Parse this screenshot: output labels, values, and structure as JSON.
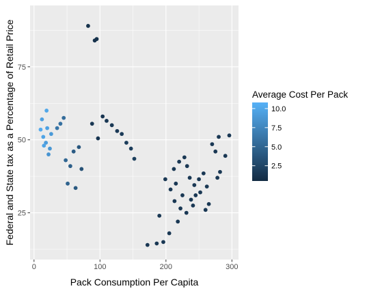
{
  "chart_data": {
    "type": "scatter",
    "title": "",
    "xlabel": "Pack Consumption Per Capita",
    "ylabel": "Federal and State tax as a Percentage of Retail Price",
    "xlim": [
      -6,
      310
    ],
    "ylim": [
      9,
      96
    ],
    "x_ticks": [
      0,
      100,
      200,
      300
    ],
    "x_tick_labels": [
      "0",
      "100",
      "200",
      "300"
    ],
    "y_ticks": [
      25,
      50,
      75
    ],
    "y_tick_labels": [
      "25",
      "50",
      "75"
    ],
    "grid": true,
    "panel_background": "#EBEBEB",
    "grid_color": "#FFFFFF",
    "legend": {
      "title": "Average Cost Per Pack",
      "position": "right",
      "type": "colorbar",
      "range": [
        0.5,
        10.8
      ],
      "breaks": [
        2.5,
        5.0,
        7.5,
        10.0
      ],
      "break_labels": [
        "2.5",
        "5.0",
        "7.5",
        "10.0"
      ],
      "low_color": "#132B43",
      "high_color": "#56B1F7"
    },
    "points": [
      [
        82,
        89,
        1.0
      ],
      [
        92,
        84,
        1.0
      ],
      [
        95,
        84.5,
        1.0
      ],
      [
        296,
        51.5,
        1.5
      ],
      [
        280,
        51,
        1.5
      ],
      [
        275,
        46,
        1.5
      ],
      [
        290,
        44.5,
        1.5
      ],
      [
        270,
        48.5,
        1.5
      ],
      [
        282,
        39,
        1.5
      ],
      [
        278,
        37,
        1.5
      ],
      [
        262,
        34,
        1.5
      ],
      [
        250,
        36.5,
        1.5
      ],
      [
        252,
        32,
        1.5
      ],
      [
        265,
        28,
        1.5
      ],
      [
        260,
        26,
        1.5
      ],
      [
        245,
        31,
        1.5
      ],
      [
        238,
        29.5,
        1.5
      ],
      [
        232,
        41,
        1.5
      ],
      [
        228,
        44,
        1.5
      ],
      [
        220,
        42.5,
        1.5
      ],
      [
        212,
        40,
        1.5
      ],
      [
        207,
        33,
        1.5
      ],
      [
        213,
        29,
        1.5
      ],
      [
        222,
        26.5,
        1.5
      ],
      [
        218,
        22,
        1.5
      ],
      [
        205,
        18,
        1.5
      ],
      [
        196,
        15,
        1.5
      ],
      [
        186,
        14.5,
        1.5
      ],
      [
        172,
        14,
        1.5
      ],
      [
        190,
        24,
        1.5
      ],
      [
        236,
        37,
        1.5
      ],
      [
        243,
        34.5,
        1.5
      ],
      [
        257,
        38.5,
        1.5
      ],
      [
        225,
        31,
        1.5
      ],
      [
        231,
        25,
        1.5
      ],
      [
        215,
        35,
        1.5
      ],
      [
        199,
        36.5,
        1.5
      ],
      [
        241,
        27.5,
        1.5
      ],
      [
        19,
        60,
        10.0
      ],
      [
        12,
        57,
        9.5
      ],
      [
        14,
        51,
        9.8
      ],
      [
        18,
        49,
        9.2
      ],
      [
        24,
        47,
        8.8
      ],
      [
        10,
        53.5,
        10.3
      ],
      [
        20,
        54,
        9.6
      ],
      [
        26,
        52,
        9.0
      ],
      [
        15,
        48,
        9.8
      ],
      [
        22,
        45,
        8.6
      ],
      [
        45,
        57.5,
        5.5
      ],
      [
        40,
        55.5,
        5.8
      ],
      [
        35,
        54,
        6.2
      ],
      [
        48,
        43,
        5.0
      ],
      [
        55,
        41,
        4.5
      ],
      [
        60,
        46,
        4.2
      ],
      [
        68,
        47.5,
        3.8
      ],
      [
        72,
        40,
        3.5
      ],
      [
        63,
        33.5,
        4.0
      ],
      [
        51,
        35,
        4.8
      ],
      [
        88,
        55.5,
        1.4
      ],
      [
        104,
        58,
        1.3
      ],
      [
        110,
        56.5,
        1.4
      ],
      [
        118,
        55,
        1.5
      ],
      [
        126,
        53,
        1.6
      ],
      [
        133,
        52,
        1.7
      ],
      [
        97,
        50.5,
        1.3
      ],
      [
        140,
        49,
        1.8
      ],
      [
        147,
        47,
        1.9
      ],
      [
        152,
        43.5,
        2.0
      ]
    ]
  }
}
